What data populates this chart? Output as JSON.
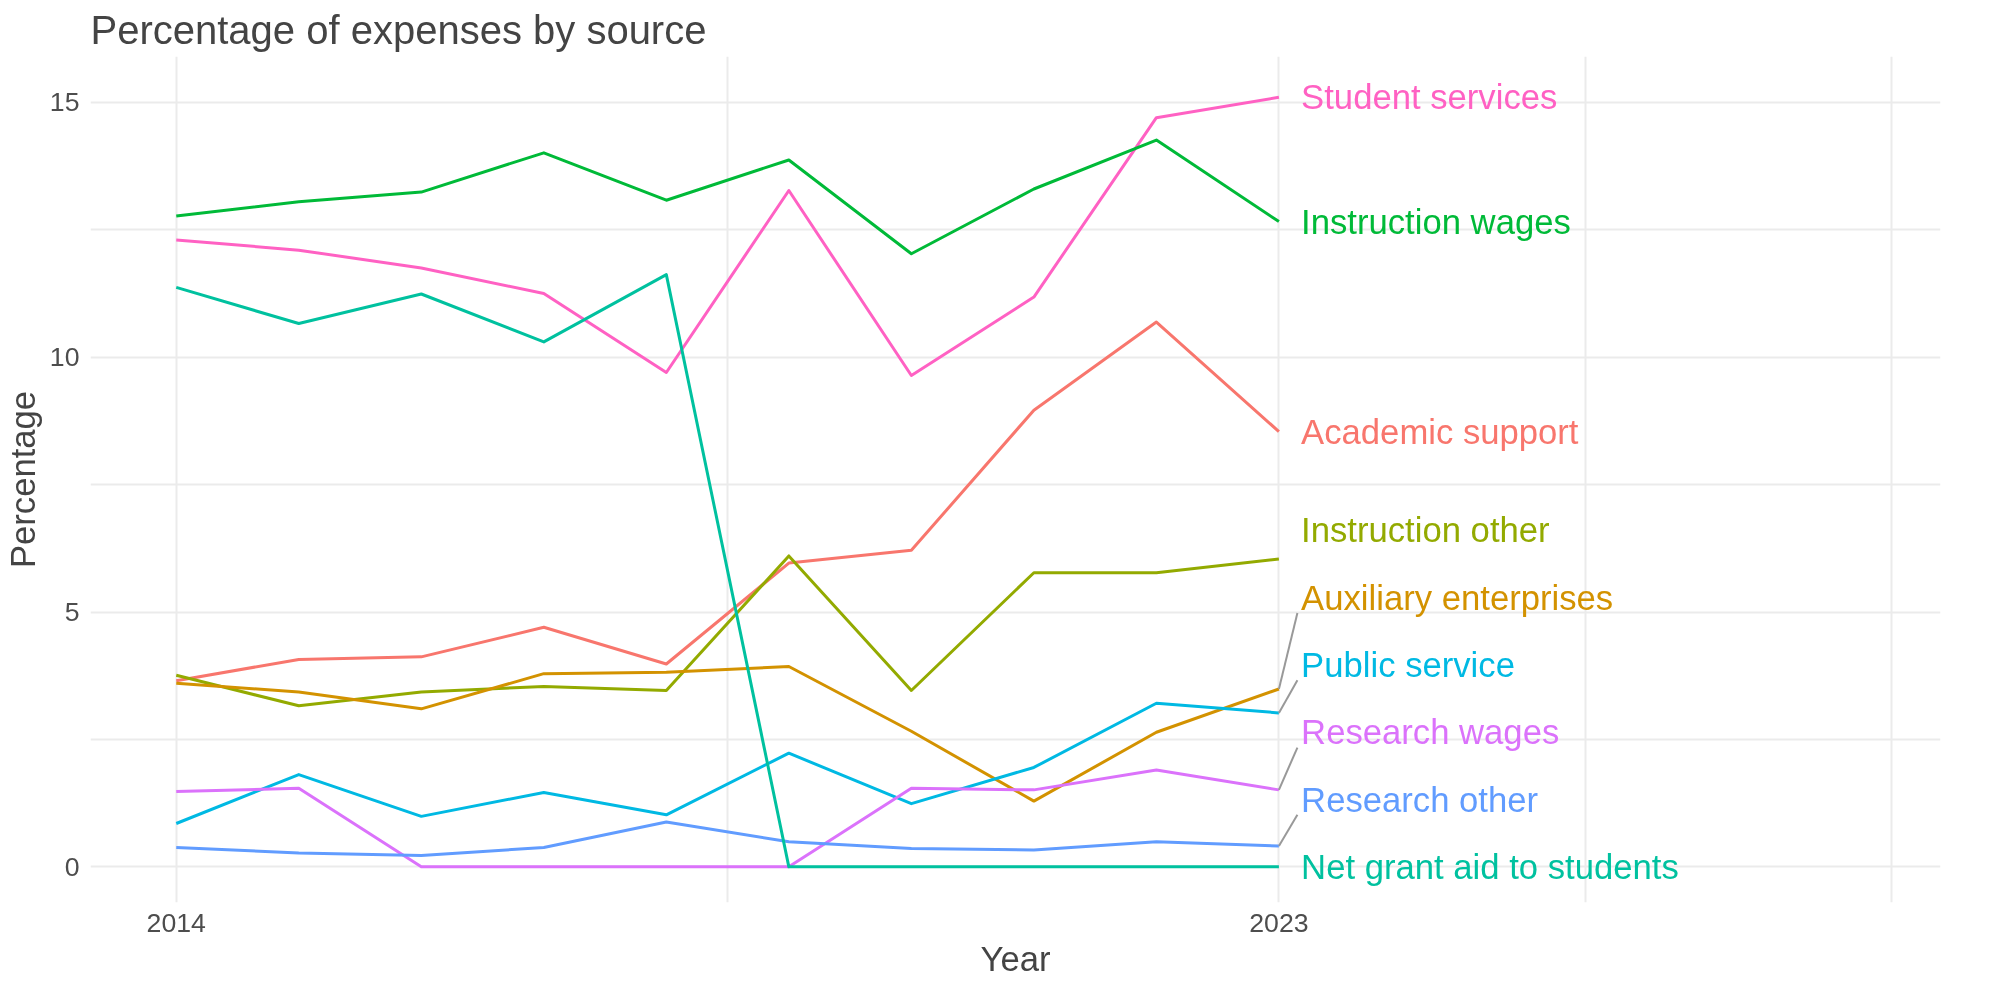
{
  "chart_data": {
    "type": "line",
    "title": "Percentage of expenses by source",
    "xlabel": "Year",
    "ylabel": "Percentage",
    "x": [
      2014,
      2015,
      2016,
      2017,
      2018,
      2019,
      2020,
      2021,
      2022,
      2023
    ],
    "xlim": [
      2013.3,
      2028.4
    ],
    "xticks": [
      2014,
      {
        "value": 2018.5,
        "label": null
      },
      2023,
      {
        "value": 2025.5,
        "label": null
      },
      {
        "value": 2028,
        "label": null
      }
    ],
    "ylim": [
      -0.7,
      15.9
    ],
    "yticks": [
      0,
      {
        "value": 2.5,
        "label": null
      },
      5,
      {
        "value": 7.5,
        "label": null
      },
      10,
      {
        "value": 12.5,
        "label": null
      },
      15
    ],
    "grid": true,
    "marker": "none",
    "line_style": "solid",
    "series": [
      {
        "name": "Student services",
        "color": "#ff61c3",
        "values": [
          12.3,
          12.1,
          11.75,
          11.25,
          9.7,
          13.27,
          9.64,
          11.18,
          14.7,
          15.1
        ]
      },
      {
        "name": "Instruction wages",
        "color": "#00ba38",
        "values": [
          12.77,
          13.05,
          13.24,
          14.01,
          13.08,
          13.87,
          12.03,
          13.3,
          14.26,
          12.66
        ]
      },
      {
        "name": "Academic support",
        "color": "#f8766d",
        "values": [
          3.65,
          4.07,
          4.12,
          4.7,
          3.98,
          5.96,
          6.21,
          8.96,
          10.69,
          8.54
        ]
      },
      {
        "name": "Instruction other",
        "color": "#93aa00",
        "values": [
          3.76,
          3.16,
          3.43,
          3.54,
          3.46,
          6.1,
          3.46,
          5.77,
          5.77,
          6.04
        ]
      },
      {
        "name": "Auxiliary enterprises",
        "color": "#d39200",
        "values": [
          3.6,
          3.43,
          3.1,
          3.79,
          3.82,
          3.93,
          2.66,
          1.29,
          2.64,
          3.49
        ]
      },
      {
        "name": "Public service",
        "color": "#00b9e3",
        "values": [
          0.85,
          1.81,
          0.99,
          1.46,
          1.02,
          2.23,
          1.24,
          1.95,
          3.21,
          3.02
        ]
      },
      {
        "name": "Research wages",
        "color": "#db72fb",
        "values": [
          1.48,
          1.54,
          0,
          0,
          0,
          0,
          1.54,
          1.51,
          1.9,
          1.51
        ]
      },
      {
        "name": "Research other",
        "color": "#619cff",
        "values": [
          0.38,
          0.27,
          0.22,
          0.38,
          0.88,
          0.49,
          0.36,
          0.33,
          0.49,
          0.41
        ]
      },
      {
        "name": "Net grant aid to students",
        "color": "#00c19f",
        "values": [
          11.37,
          10.66,
          11.24,
          10.3,
          11.62,
          0,
          0,
          0,
          0,
          0
        ]
      }
    ]
  }
}
